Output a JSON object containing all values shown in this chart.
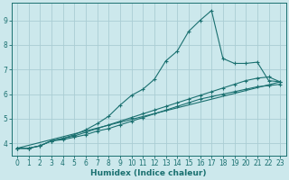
{
  "title": "",
  "xlabel": "Humidex (Indice chaleur)",
  "ylabel": "",
  "xlim": [
    -0.5,
    23.5
  ],
  "ylim": [
    3.5,
    9.7
  ],
  "yticks": [
    4,
    5,
    6,
    7,
    8,
    9
  ],
  "xticks": [
    0,
    1,
    2,
    3,
    4,
    5,
    6,
    7,
    8,
    9,
    10,
    11,
    12,
    13,
    14,
    15,
    16,
    17,
    18,
    19,
    20,
    21,
    22,
    23
  ],
  "bg_color": "#cce8ec",
  "line_color": "#1a7070",
  "grid_color": "#aacdd4",
  "lines": [
    {
      "x": [
        0,
        1,
        2,
        3,
        4,
        5,
        6,
        7,
        8,
        9,
        10,
        11,
        12,
        13,
        14,
        15,
        16,
        17,
        18,
        19,
        20,
        21,
        22,
        23
      ],
      "y": [
        3.8,
        3.8,
        3.9,
        4.1,
        4.2,
        4.35,
        4.55,
        4.8,
        5.1,
        5.55,
        5.95,
        6.2,
        6.6,
        7.35,
        7.75,
        8.55,
        9.0,
        9.4,
        7.45,
        7.25,
        7.25,
        7.3,
        6.55,
        6.5
      ]
    },
    {
      "x": [
        0,
        1,
        2,
        3,
        4,
        5,
        6,
        7,
        8,
        9,
        10,
        11,
        12,
        13,
        14,
        15,
        16,
        17,
        18,
        19,
        20,
        21,
        22,
        23
      ],
      "y": [
        3.8,
        3.8,
        3.9,
        4.1,
        4.2,
        4.3,
        4.45,
        4.6,
        4.75,
        4.9,
        5.05,
        5.2,
        5.35,
        5.5,
        5.65,
        5.8,
        5.95,
        6.1,
        6.25,
        6.4,
        6.55,
        6.65,
        6.7,
        6.5
      ]
    },
    {
      "x": [
        0,
        1,
        2,
        3,
        4,
        5,
        6,
        7,
        8,
        9,
        10,
        11,
        12,
        13,
        14,
        15,
        16,
        17,
        18,
        19,
        20,
        21,
        22,
        23
      ],
      "y": [
        3.8,
        3.8,
        3.9,
        4.1,
        4.15,
        4.25,
        4.35,
        4.5,
        4.6,
        4.75,
        4.9,
        5.05,
        5.2,
        5.35,
        5.5,
        5.65,
        5.8,
        5.9,
        6.0,
        6.1,
        6.2,
        6.3,
        6.35,
        6.4
      ]
    },
    {
      "x": [
        0,
        23
      ],
      "y": [
        3.8,
        6.5
      ]
    }
  ]
}
